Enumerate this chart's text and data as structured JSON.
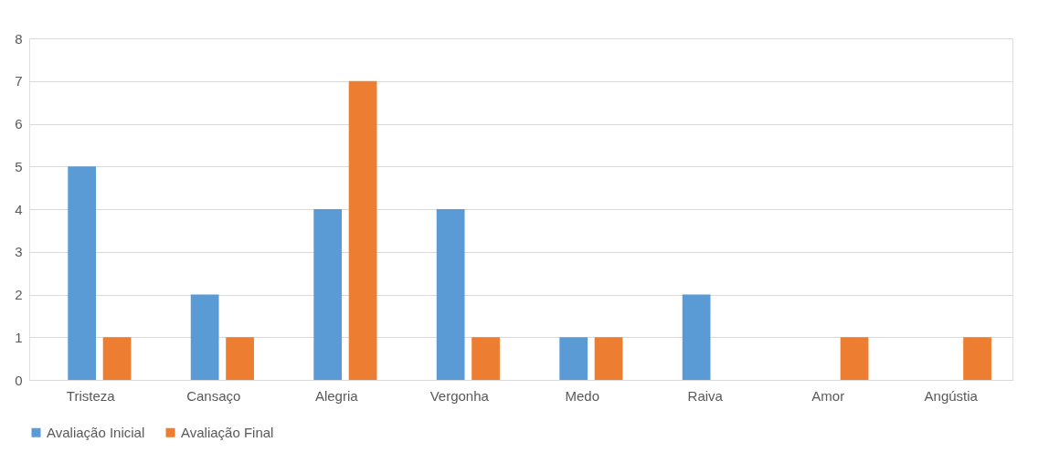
{
  "chart_data": {
    "type": "bar",
    "categories": [
      "Tristeza",
      "Cansaço",
      "Alegria",
      "Vergonha",
      "Medo",
      "Raiva",
      "Amor",
      "Angústia"
    ],
    "series": [
      {
        "name": "Avaliação Inicial",
        "color": "#5b9bd5",
        "values": [
          5,
          2,
          4,
          4,
          1,
          2,
          0,
          0
        ]
      },
      {
        "name": "Avaliação Final",
        "color": "#ed7d31",
        "values": [
          1,
          1,
          7,
          1,
          1,
          0,
          1,
          1
        ]
      }
    ],
    "ylim": [
      0,
      8
    ],
    "yticks": [
      0,
      1,
      2,
      3,
      4,
      5,
      6,
      7,
      8
    ],
    "grid": "y",
    "legend": "bottom"
  }
}
